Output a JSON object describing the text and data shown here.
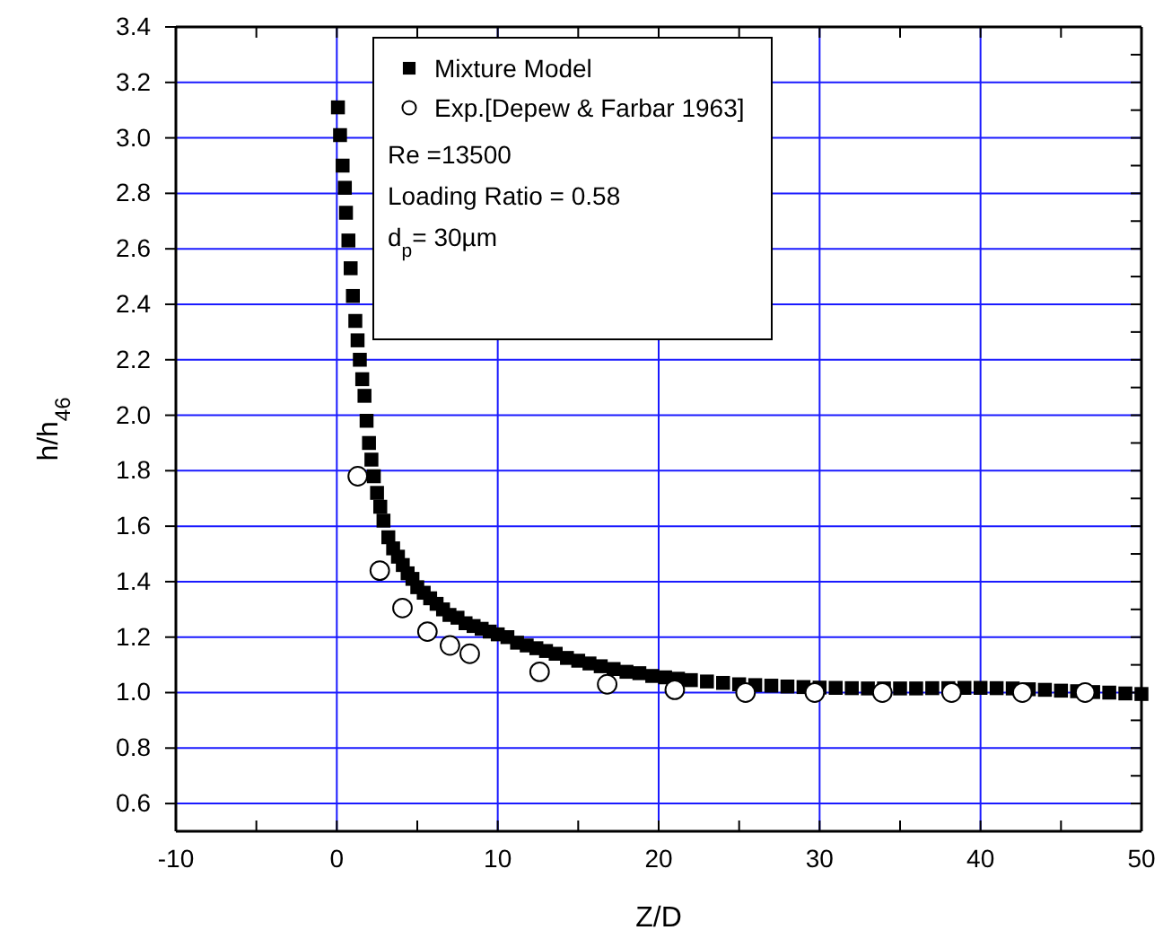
{
  "chart_data": {
    "type": "scatter",
    "xlabel": "Z/D",
    "ylabel": "h/h$_{46}$",
    "xlim": [
      -10,
      50
    ],
    "ylim": [
      0.5,
      3.4
    ],
    "xticks": [
      -10,
      {
        "value": -5,
        "label": null
      },
      0,
      {
        "value": 5,
        "label": null
      },
      10,
      {
        "value": 15,
        "label": null
      },
      20,
      {
        "value": 25,
        "label": null
      },
      30,
      {
        "value": 35,
        "label": null
      },
      40,
      {
        "value": 45,
        "label": null
      },
      50
    ],
    "yticks": [
      {
        "value": 0.5,
        "label": null
      },
      0.6,
      {
        "value": 0.7,
        "label": null
      },
      0.8,
      {
        "value": 0.9,
        "label": null
      },
      {
        "value": 1,
        "label": "1.0"
      },
      {
        "value": 1.1,
        "label": null
      },
      1.2,
      {
        "value": 1.3,
        "label": null
      },
      1.4,
      {
        "value": 1.5,
        "label": null
      },
      1.6,
      {
        "value": 1.7,
        "label": null
      },
      1.8,
      {
        "value": 1.9,
        "label": null
      },
      {
        "value": 2,
        "label": "2.0"
      },
      {
        "value": 2.1,
        "label": null
      },
      2.2,
      {
        "value": 2.3,
        "label": null
      },
      2.4,
      {
        "value": 2.5,
        "label": null
      },
      2.6,
      {
        "value": 2.7,
        "label": null
      },
      2.8,
      {
        "value": 2.9,
        "label": null
      },
      {
        "value": 3,
        "label": "3.0"
      },
      {
        "value": 3.1,
        "label": null
      },
      3.2,
      {
        "value": 3.3,
        "label": null
      },
      3.4
    ],
    "grid": true,
    "legend": "top",
    "annotations": [
      "Re =13500",
      "Loading Ratio = 0.58",
      "d$_{p}$= 30µm"
    ],
    "series": [
      {
        "name": "Mixture Model",
        "color": "#000000",
        "marker": "square",
        "x": [
          0.07,
          0.2,
          0.36,
          0.5,
          0.57,
          0.72,
          0.86,
          1.0,
          1.15,
          1.29,
          1.43,
          1.58,
          1.72,
          1.85,
          2.0,
          2.15,
          2.3,
          2.5,
          2.7,
          2.9,
          3.2,
          3.5,
          3.8,
          4.1,
          4.4,
          4.7,
          5.0,
          5.4,
          5.8,
          6.2,
          6.6,
          7.0,
          7.5,
          8.0,
          8.5,
          9.0,
          9.5,
          10,
          10.6,
          11.2,
          11.8,
          12.4,
          13.0,
          13.6,
          14.3,
          15,
          15.7,
          16.4,
          17.2,
          18,
          18.8,
          19.6,
          20.4,
          21.2,
          22,
          23,
          24,
          25,
          26,
          27,
          28,
          29,
          30,
          31,
          32,
          33,
          34,
          35,
          36,
          37,
          38,
          39,
          40,
          41,
          42,
          43,
          44,
          45,
          46,
          47,
          48,
          49,
          50
        ],
        "values": [
          3.11,
          3.01,
          2.9,
          2.82,
          2.73,
          2.63,
          2.53,
          2.43,
          2.34,
          2.27,
          2.2,
          2.13,
          2.07,
          1.98,
          1.9,
          1.84,
          1.78,
          1.72,
          1.67,
          1.62,
          1.56,
          1.52,
          1.49,
          1.46,
          1.43,
          1.41,
          1.38,
          1.36,
          1.34,
          1.32,
          1.3,
          1.28,
          1.27,
          1.25,
          1.24,
          1.23,
          1.22,
          1.21,
          1.2,
          1.18,
          1.17,
          1.16,
          1.15,
          1.14,
          1.125,
          1.115,
          1.105,
          1.095,
          1.085,
          1.075,
          1.07,
          1.06,
          1.055,
          1.05,
          1.045,
          1.04,
          1.035,
          1.03,
          1.027,
          1.025,
          1.022,
          1.02,
          1.018,
          1.017,
          1.016,
          1.015,
          1.015,
          1.015,
          1.015,
          1.016,
          1.016,
          1.017,
          1.017,
          1.016,
          1.015,
          1.012,
          1.01,
          1.007,
          1.005,
          1.002,
          1.0,
          0.997,
          0.995
        ]
      },
      {
        "name": "Exp.[Depew & Farbar 1963]",
        "color": "#000000",
        "marker": "circle",
        "x": [
          1.3,
          2.67,
          4.08,
          5.63,
          7.03,
          8.26,
          12.6,
          16.8,
          21.0,
          25.4,
          29.7,
          33.9,
          38.2,
          42.6,
          46.5
        ],
        "values": [
          1.78,
          1.44,
          1.305,
          1.22,
          1.17,
          1.14,
          1.075,
          1.03,
          1.01,
          1.0,
          1.0,
          1.0,
          1.0,
          1.0,
          1.0
        ]
      }
    ]
  }
}
